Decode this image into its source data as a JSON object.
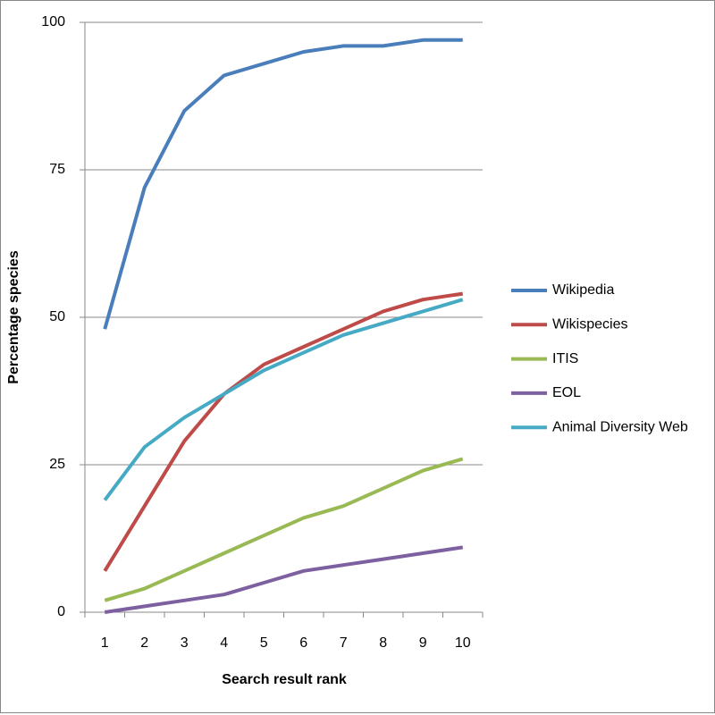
{
  "chart_data": {
    "type": "line",
    "x_label": "Search result rank",
    "y_label": "Percentage species",
    "categories": [
      "1",
      "2",
      "3",
      "4",
      "5",
      "6",
      "7",
      "8",
      "9",
      "10"
    ],
    "series": [
      {
        "name": "Wikipedia",
        "color": "#4a7ebb",
        "values": [
          48,
          72,
          85,
          91,
          93,
          95,
          96,
          96,
          97,
          97
        ]
      },
      {
        "name": "Wikispecies",
        "color": "#be4b48",
        "values": [
          7,
          18,
          29,
          37,
          42,
          45,
          48,
          51,
          53,
          54
        ]
      },
      {
        "name": "ITIS",
        "color": "#98b954",
        "values": [
          2,
          4,
          7,
          10,
          13,
          16,
          18,
          21,
          24,
          26
        ]
      },
      {
        "name": "EOL",
        "color": "#7d60a0",
        "values": [
          0,
          1,
          2,
          3,
          5,
          7,
          8,
          9,
          10,
          11
        ]
      },
      {
        "name": "Animal Diversity Web",
        "color": "#46aac5",
        "values": [
          19,
          28,
          33,
          37,
          41,
          44,
          47,
          49,
          51,
          53
        ]
      }
    ],
    "ylim": [
      0,
      100
    ],
    "yticks": [
      0,
      25,
      50,
      75,
      100
    ],
    "grid": true,
    "legend": "right"
  }
}
